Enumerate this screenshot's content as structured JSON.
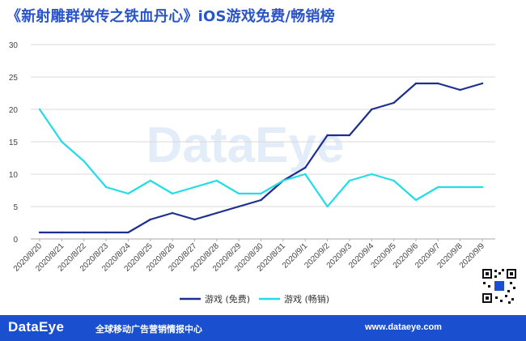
{
  "title": "《新射雕群侠传之铁血丹心》iOS游戏免费/畅销榜",
  "watermark": "DataEye",
  "chart_data": {
    "type": "line",
    "title": "《新射雕群侠传之铁血丹心》iOS游戏免费/畅销榜",
    "xlabel": "",
    "ylabel": "",
    "ylim": [
      0,
      30
    ],
    "yticks": [
      0,
      5,
      10,
      15,
      20,
      25,
      30
    ],
    "grid": true,
    "legend_position": "bottom-center",
    "categories": [
      "2020/8/20",
      "2020/8/21",
      "2020/8/22",
      "2020/8/23",
      "2020/8/24",
      "2020/8/25",
      "2020/8/26",
      "2020/8/27",
      "2020/8/28",
      "2020/8/29",
      "2020/8/30",
      "2020/8/31",
      "2020/9/1",
      "2020/9/2",
      "2020/9/3",
      "2020/9/4",
      "2020/9/5",
      "2020/9/6",
      "2020/9/7",
      "2020/9/8",
      "2020/9/9"
    ],
    "series": [
      {
        "name": "游戏 (免费)",
        "color": "#1f2f8f",
        "values": [
          1,
          1,
          1,
          1,
          1,
          3,
          4,
          3,
          4,
          5,
          6,
          9,
          11,
          16,
          16,
          20,
          21,
          24,
          24,
          23,
          24
        ]
      },
      {
        "name": "游戏 (畅销)",
        "color": "#22dde6",
        "values": [
          20,
          15,
          12,
          8,
          7,
          9,
          7,
          8,
          9,
          7,
          7,
          9,
          10,
          5,
          9,
          10,
          9,
          6,
          8,
          8,
          8
        ]
      }
    ]
  },
  "footer": {
    "brand": "DataEye",
    "tagline": "全球移动广告营销情报中心",
    "url": "www.dataeye.com",
    "background": "#1a4fd0"
  },
  "qr_icon": "qr-code-icon"
}
